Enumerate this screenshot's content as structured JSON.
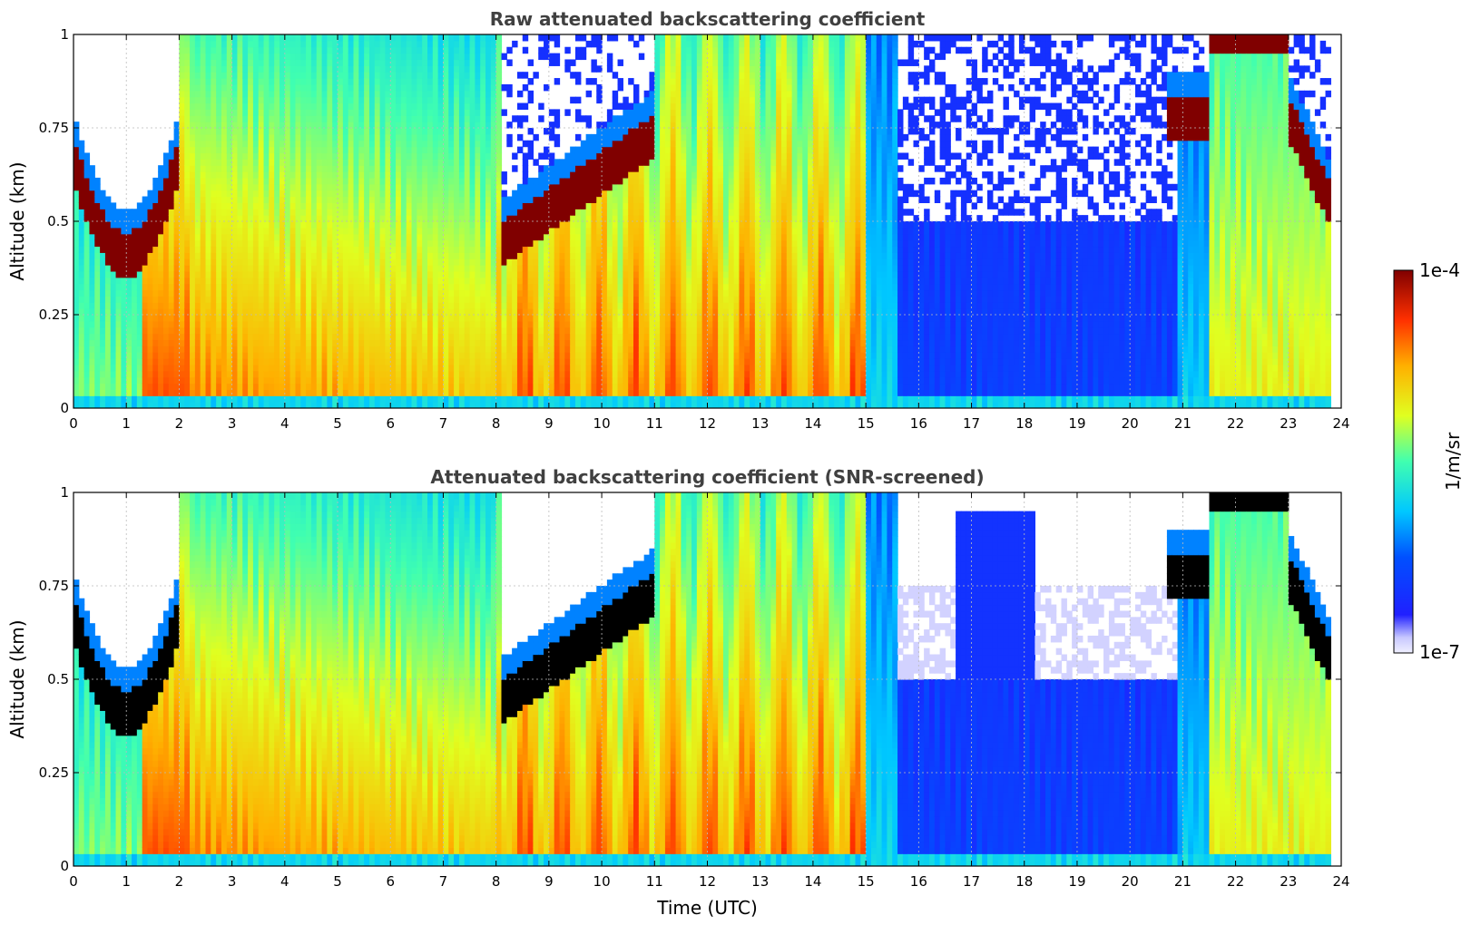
{
  "chart_data": [
    {
      "type": "heatmap",
      "title": "Raw attenuated backscattering coefficient",
      "xlabel": "",
      "ylabel": "Altitude (km)",
      "xlim": [
        0,
        24
      ],
      "ylim": [
        0,
        1
      ],
      "x_ticks": [
        "0",
        "1",
        "2",
        "3",
        "4",
        "5",
        "6",
        "7",
        "8",
        "9",
        "10",
        "11",
        "12",
        "13",
        "14",
        "15",
        "16",
        "17",
        "18",
        "19",
        "20",
        "21",
        "22",
        "23",
        "24"
      ],
      "y_ticks": [
        "0",
        "0.25",
        "0.5",
        "0.75",
        "1"
      ],
      "grid": true,
      "screened": false
    },
    {
      "type": "heatmap",
      "title": "Attenuated backscattering coefficient (SNR-screened)",
      "xlabel": "Time (UTC)",
      "ylabel": "Altitude (km)",
      "xlim": [
        0,
        24
      ],
      "ylim": [
        0,
        1
      ],
      "x_ticks": [
        "0",
        "1",
        "2",
        "3",
        "4",
        "5",
        "6",
        "7",
        "8",
        "9",
        "10",
        "11",
        "12",
        "13",
        "14",
        "15",
        "16",
        "17",
        "18",
        "19",
        "20",
        "21",
        "22",
        "23",
        "24"
      ],
      "y_ticks": [
        "0",
        "0.25",
        "0.5",
        "0.75",
        "1"
      ],
      "grid": true,
      "screened": true
    }
  ],
  "colorbar": {
    "label": "1/m/sr",
    "max_label": "1e-4",
    "min_label": "1e-7",
    "scale": "log",
    "colormap": "jet"
  },
  "colors": {
    "title": "#404040",
    "saturated_screened": "#000000",
    "grid": "#bbbbbb"
  }
}
